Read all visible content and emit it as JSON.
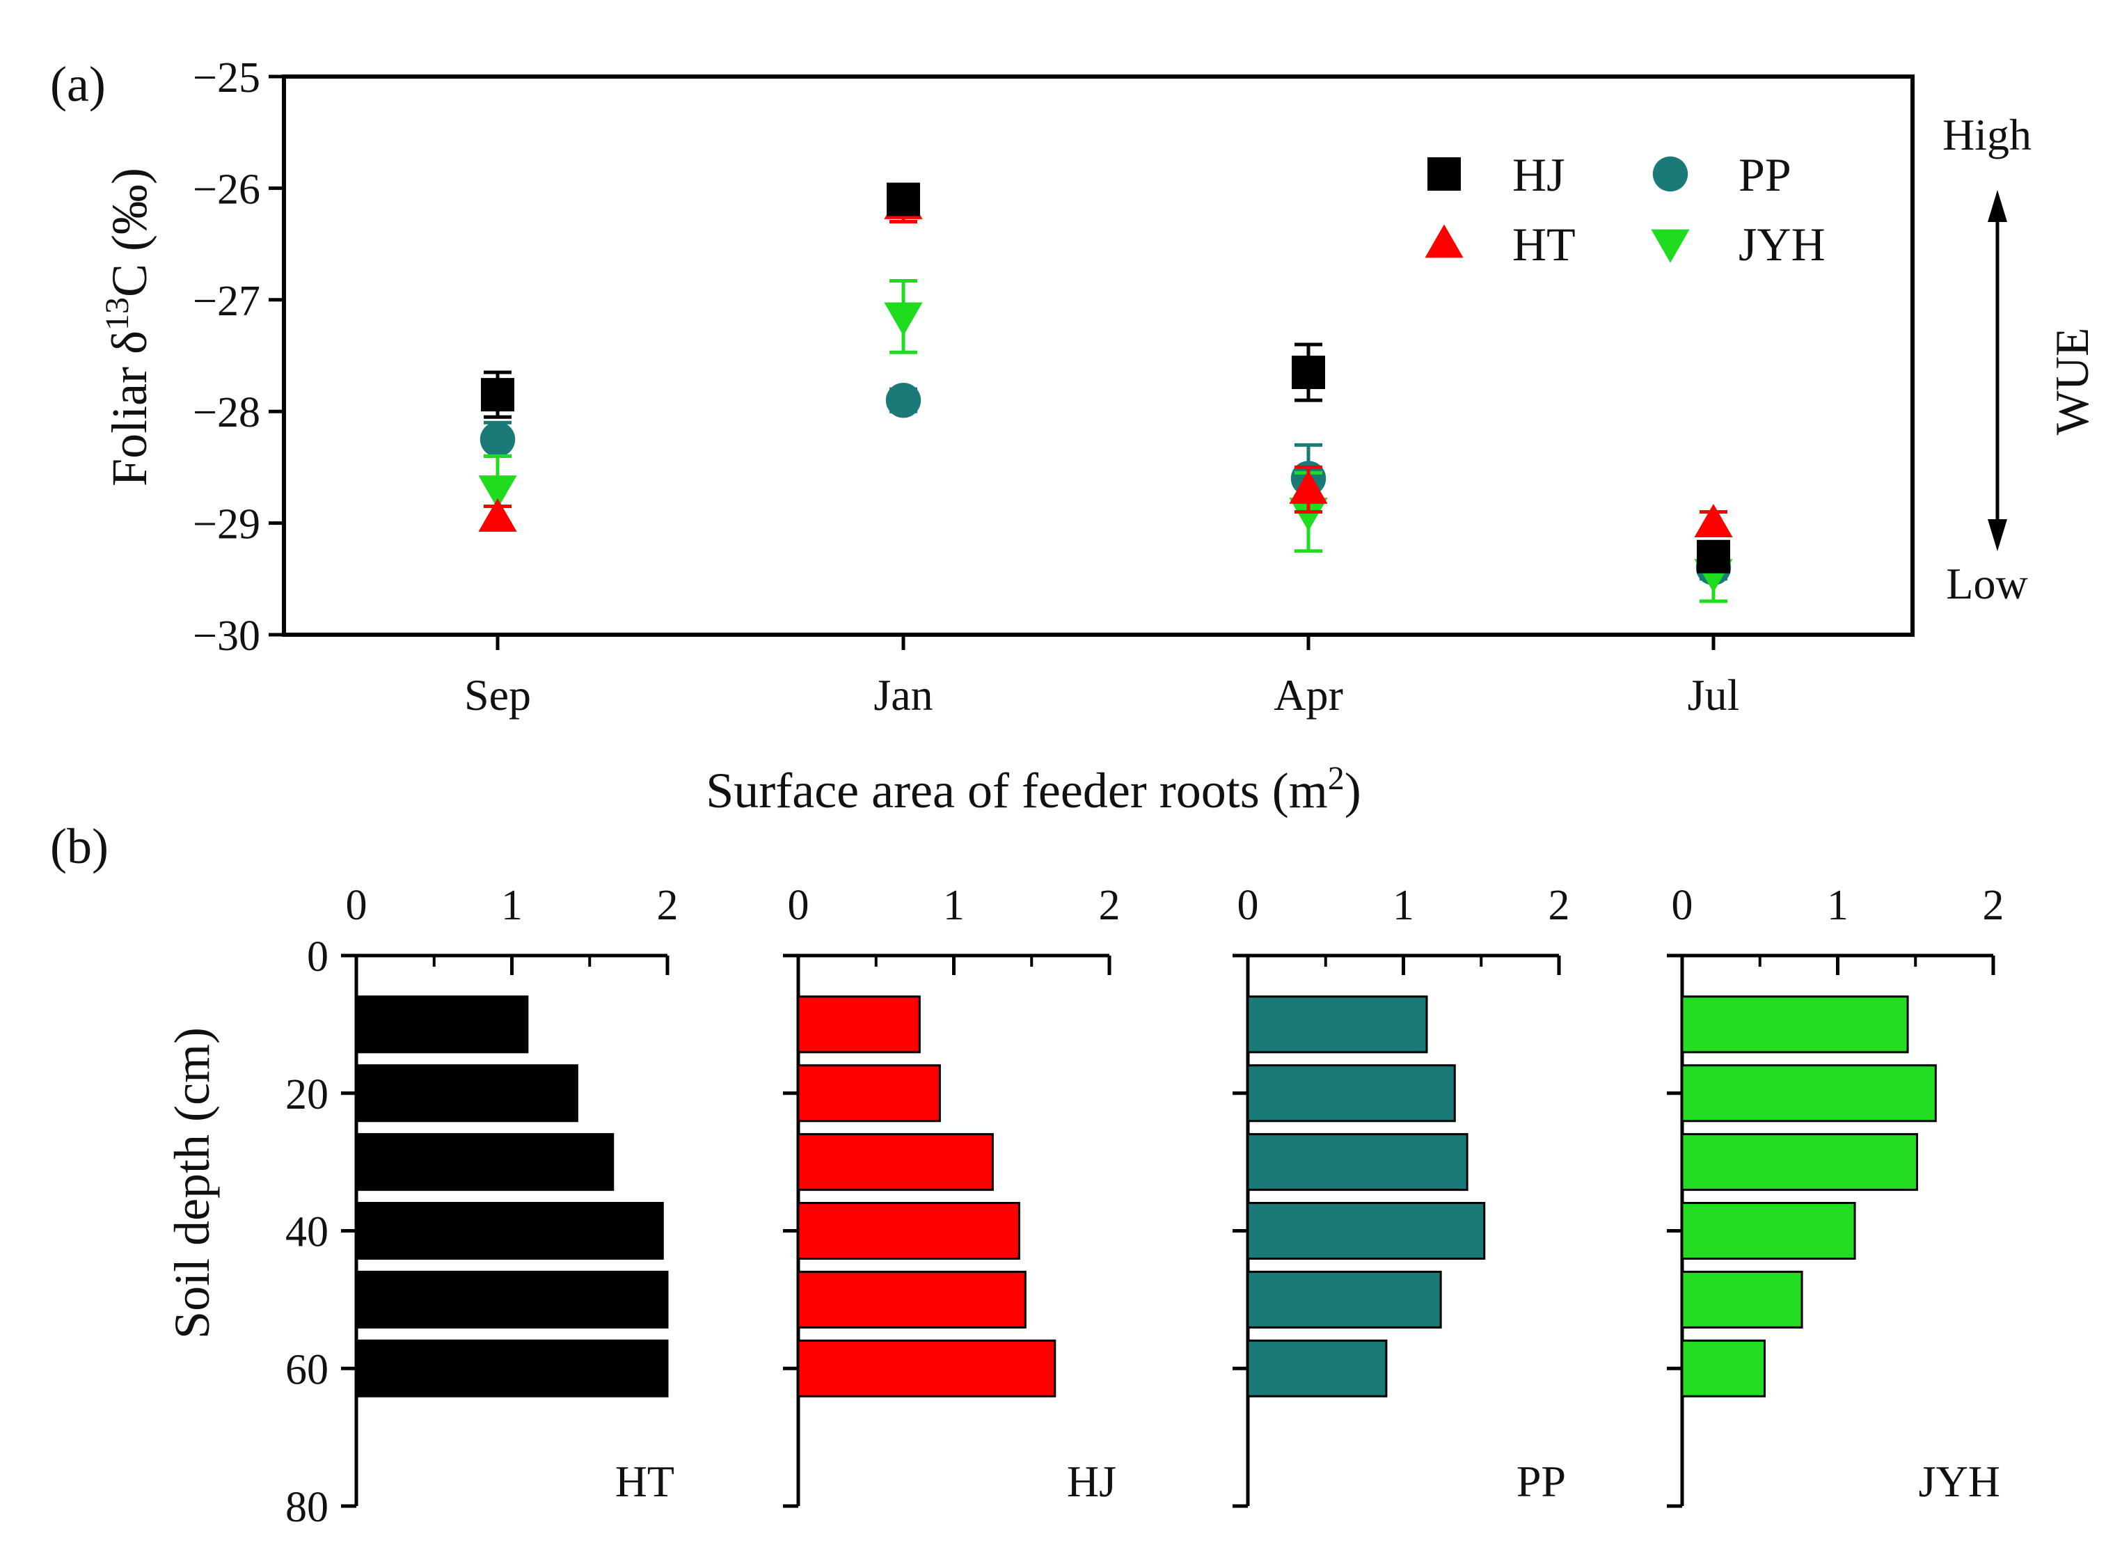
{
  "chart_data": [
    {
      "panel_label": "(a)",
      "type": "scatter",
      "ylabel_prefix": "Foliar δ",
      "ylabel_sup": "13",
      "ylabel_suffix": "C (‰)",
      "categories": [
        "Sep",
        "Jan",
        "Apr",
        "Jul"
      ],
      "ylim": [
        -30,
        -25
      ],
      "yticks": [
        -25,
        -26,
        -27,
        -28,
        -29,
        -30
      ],
      "series": [
        {
          "name": "HJ",
          "marker": "square",
          "color": "#000000",
          "values": [
            -27.85,
            -26.1,
            -27.65,
            -29.3
          ],
          "errors": [
            0.2,
            0.12,
            0.25,
            0.1
          ]
        },
        {
          "name": "HT",
          "marker": "triangle-up",
          "color": "#ff0000",
          "values": [
            -28.95,
            -26.15,
            -28.7,
            -29.0
          ],
          "errors": [
            0.1,
            0.15,
            0.2,
            0.1
          ]
        },
        {
          "name": "PP",
          "marker": "circle",
          "color": "#1a7a78",
          "values": [
            -28.25,
            -27.9,
            -28.6,
            -29.4
          ],
          "errors": [
            0.15,
            0.1,
            0.3,
            0.1
          ]
        },
        {
          "name": "JYH",
          "marker": "triangle-down",
          "color": "#1fdc1f",
          "values": [
            -28.7,
            -27.15,
            -28.9,
            -29.45
          ],
          "errors": [
            0.3,
            0.32,
            0.35,
            0.25
          ]
        }
      ],
      "legend_position": "top-right",
      "wue_label": "WUE",
      "wue_high": "High",
      "wue_low": "Low"
    },
    {
      "panel_label": "(b)",
      "type": "bar",
      "orientation": "horizontal",
      "xlabel_prefix": "Surface area of feeder roots (m",
      "xlabel_sup": "2",
      "xlabel_suffix": ")",
      "ylabel": "Soil depth (cm)",
      "xlim": [
        0,
        2
      ],
      "xticks": [
        0,
        1,
        2
      ],
      "ylim": [
        0,
        80
      ],
      "yticks": [
        0,
        20,
        40,
        60,
        80
      ],
      "depth_centers": [
        10,
        20,
        30,
        40,
        50,
        60
      ],
      "panels": [
        {
          "name": "HT",
          "color": "#000000",
          "values": [
            1.1,
            1.42,
            1.65,
            1.97,
            2.0,
            2.0
          ]
        },
        {
          "name": "HJ",
          "color": "#ff0000",
          "values": [
            0.78,
            0.91,
            1.25,
            1.42,
            1.46,
            1.65
          ]
        },
        {
          "name": "PP",
          "color": "#1a7a78",
          "values": [
            1.15,
            1.33,
            1.41,
            1.52,
            1.24,
            0.89
          ]
        },
        {
          "name": "JYH",
          "color": "#22dd22",
          "values": [
            1.45,
            1.63,
            1.51,
            1.11,
            0.77,
            0.53
          ]
        }
      ]
    }
  ]
}
